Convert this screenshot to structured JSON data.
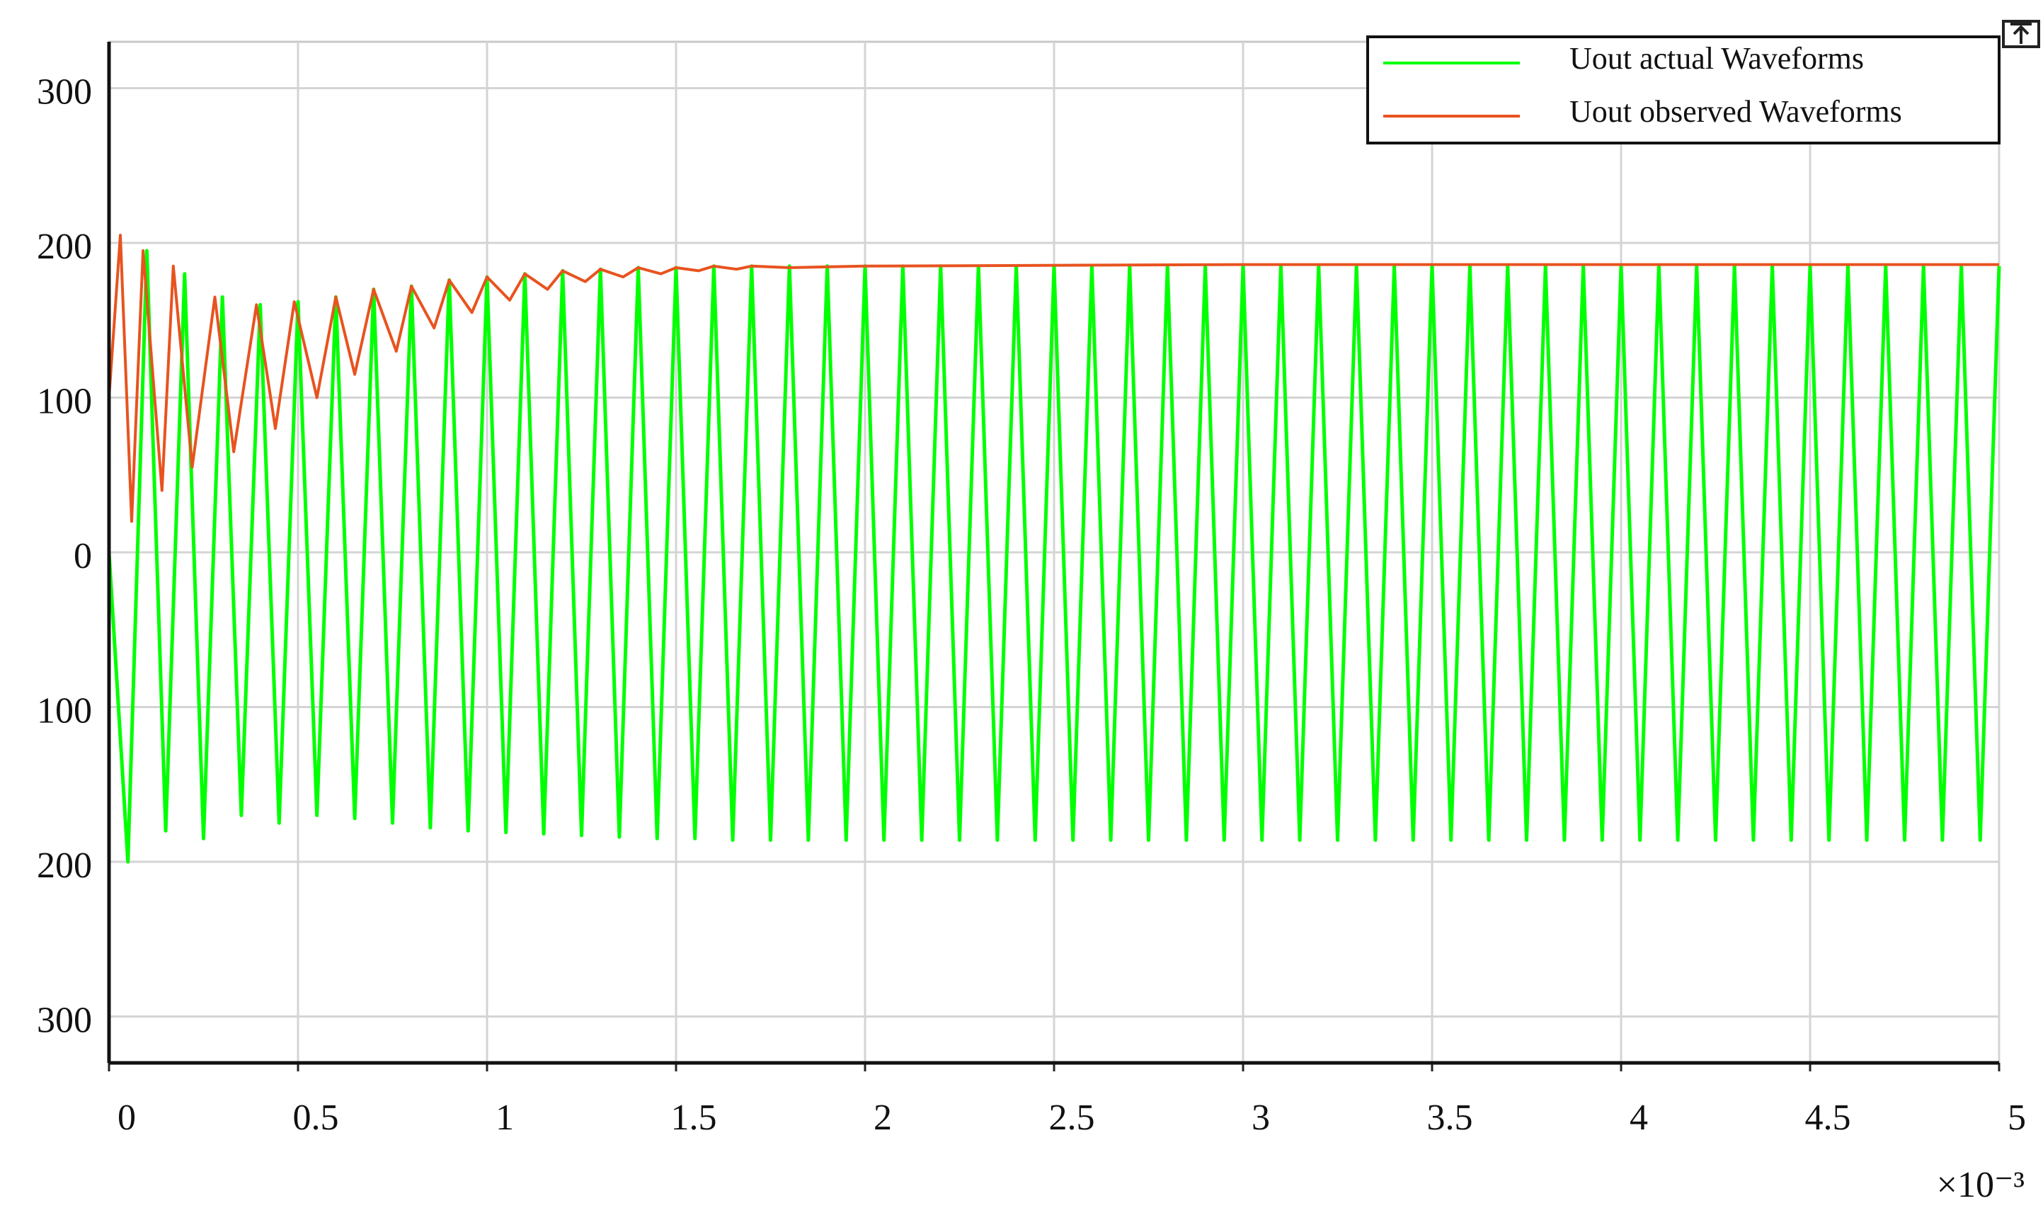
{
  "chart_data": {
    "type": "line",
    "xlim": [
      0,
      5
    ],
    "xticks": [
      0,
      0.5,
      1,
      1.5,
      2,
      2.5,
      3,
      3.5,
      4,
      4.5,
      5
    ],
    "ylim": [
      -330,
      330
    ],
    "yticks": [
      {
        "value": -300,
        "label": "300"
      },
      {
        "value": -200,
        "label": "200"
      },
      {
        "value": -100,
        "label": "100"
      },
      0,
      100,
      200,
      300
    ],
    "x_multiplier": "×10⁻³",
    "grid": true,
    "legend": "upper right",
    "series": [
      {
        "name": "Uout actual Waveforms",
        "color": "#00ff00",
        "x": [
          0,
          0.05,
          0.1,
          0.15,
          0.2,
          0.25,
          0.3,
          0.35,
          0.4,
          0.45,
          0.5,
          0.55,
          0.6,
          0.65,
          0.7,
          0.75,
          0.8,
          0.85,
          0.9,
          0.95,
          1,
          1.05,
          1.1,
          1.15,
          1.2,
          1.25,
          1.3,
          1.35,
          1.4,
          1.45,
          1.5,
          1.55,
          1.6,
          1.65,
          1.7,
          1.75,
          1.8,
          1.85,
          1.9,
          1.95,
          2,
          2.05,
          2.1,
          2.15,
          2.2,
          2.25,
          2.3,
          2.35,
          2.4,
          2.45,
          2.5,
          2.55,
          2.6,
          2.65,
          2.7,
          2.75,
          2.8,
          2.85,
          2.9,
          2.95,
          3,
          3.05,
          3.1,
          3.15,
          3.2,
          3.25,
          3.3,
          3.35,
          3.4,
          3.45,
          3.5,
          3.55,
          3.6,
          3.65,
          3.7,
          3.75,
          3.8,
          3.85,
          3.9,
          3.95,
          4,
          4.05,
          4.1,
          4.15,
          4.2,
          4.25,
          4.3,
          4.35,
          4.4,
          4.45,
          4.5,
          4.55,
          4.6,
          4.65,
          4.7,
          4.75,
          4.8,
          4.85,
          4.9,
          4.95,
          5
        ],
        "values": [
          0,
          -200,
          195,
          -180,
          180,
          -185,
          165,
          -170,
          160,
          -175,
          162,
          -170,
          165,
          -172,
          170,
          -175,
          172,
          -178,
          176,
          -180,
          178,
          -181,
          180,
          -182,
          182,
          -183,
          183,
          -184,
          184,
          -185,
          184,
          -185,
          185,
          -186,
          185,
          -186,
          185,
          -186,
          185,
          -186,
          185,
          -186,
          185,
          -186,
          185,
          -186,
          185,
          -186,
          185,
          -186,
          185,
          -186,
          185,
          -186,
          185,
          -186,
          185,
          -186,
          185,
          -186,
          185,
          -186,
          185,
          -186,
          185,
          -186,
          185,
          -186,
          185,
          -186,
          185,
          -186,
          185,
          -186,
          185,
          -186,
          185,
          -186,
          185,
          -186,
          185,
          -186,
          185,
          -186,
          185,
          -186,
          185,
          -186,
          185,
          -186,
          185,
          -186,
          185,
          -186,
          185,
          -186,
          185,
          -186,
          185,
          -186,
          185
        ]
      },
      {
        "name": "Uout observed Waveforms",
        "color": "#e8531f",
        "x": [
          0,
          0.03,
          0.06,
          0.09,
          0.14,
          0.17,
          0.22,
          0.28,
          0.33,
          0.39,
          0.44,
          0.49,
          0.55,
          0.6,
          0.65,
          0.7,
          0.76,
          0.8,
          0.86,
          0.9,
          0.96,
          1,
          1.06,
          1.1,
          1.16,
          1.2,
          1.26,
          1.3,
          1.36,
          1.4,
          1.46,
          1.5,
          1.56,
          1.6,
          1.66,
          1.7,
          1.8,
          2,
          3,
          5
        ],
        "values": [
          100,
          205,
          20,
          195,
          40,
          185,
          55,
          165,
          65,
          160,
          80,
          162,
          100,
          165,
          115,
          170,
          130,
          172,
          145,
          176,
          155,
          178,
          163,
          180,
          170,
          182,
          175,
          183,
          178,
          184,
          180,
          184,
          182,
          185,
          183,
          185,
          184,
          185,
          186,
          186
        ]
      }
    ]
  }
}
